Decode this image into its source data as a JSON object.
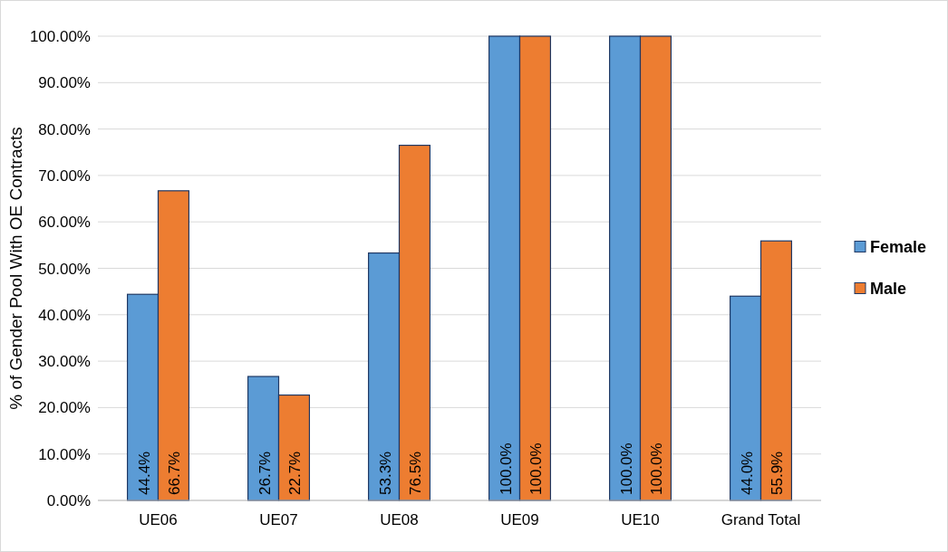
{
  "chart_data": {
    "type": "bar",
    "ylabel": "% of Gender Pool With OE Contracts",
    "categories": [
      "UE06",
      "UE07",
      "UE08",
      "UE09",
      "UE10",
      "Grand Total"
    ],
    "series": [
      {
        "name": "Female",
        "color": "#5b9bd5",
        "values": [
          44.4,
          26.7,
          53.3,
          100,
          100,
          44.0
        ],
        "value_labels": [
          "44.4%",
          "26.7%",
          "53.3%",
          "100.0%",
          "100.0%",
          "44.0%"
        ]
      },
      {
        "name": "Male",
        "color": "#ed7d31",
        "values": [
          66.7,
          22.7,
          76.5,
          100,
          100,
          55.9
        ],
        "value_labels": [
          "66.7%",
          "22.7%",
          "76.5%",
          "100.0%",
          "100.0%",
          "55.9%"
        ]
      }
    ],
    "ylim": [
      0,
      100
    ],
    "yticks": [
      {
        "value": 0,
        "label": "0.00%"
      },
      {
        "value": 10,
        "label": "10.00%"
      },
      {
        "value": 20,
        "label": "20.00%"
      },
      {
        "value": 30,
        "label": "30.00%"
      },
      {
        "value": 40,
        "label": "40.00%"
      },
      {
        "value": 50,
        "label": "50.00%"
      },
      {
        "value": 60,
        "label": "60.00%"
      },
      {
        "value": 70,
        "label": "70.00%"
      },
      {
        "value": 80,
        "label": "80.00%"
      },
      {
        "value": 90,
        "label": "90.00%"
      },
      {
        "value": 100,
        "label": "100.00%"
      }
    ],
    "grid": "y",
    "legend": "right"
  }
}
